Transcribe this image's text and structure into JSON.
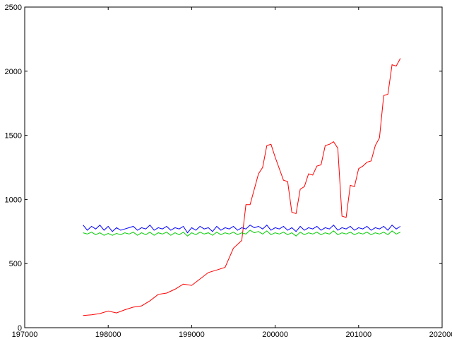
{
  "chart_data": {
    "type": "line",
    "title": "",
    "xlabel": "",
    "ylabel": "",
    "xlim": [
      197000,
      202000
    ],
    "ylim": [
      0,
      2500
    ],
    "grid": false,
    "legend": "none",
    "x_ticks": [
      197000,
      198000,
      199000,
      200000,
      201000,
      202000
    ],
    "x_tick_labels": [
      "197000",
      "198000",
      "199000",
      "200000",
      "201000",
      "202000"
    ],
    "y_ticks": [
      0,
      500,
      1000,
      1500,
      2000,
      2500
    ],
    "y_tick_labels": [
      "0",
      "500",
      "1000",
      "1500",
      "2000",
      "2500"
    ],
    "series": [
      {
        "color": "#ff0000",
        "x": [
          197700,
          197800,
          197900,
          198000,
          198100,
          198200,
          198300,
          198400,
          198500,
          198600,
          198700,
          198800,
          198900,
          199000,
          199100,
          199200,
          199300,
          199400,
          199500,
          199600,
          199650,
          199700,
          199800,
          199850,
          199900,
          199950,
          200000,
          200100,
          200150,
          200200,
          200250,
          200300,
          200350,
          200400,
          200450,
          200500,
          200550,
          200600,
          200650,
          200700,
          200750,
          200800,
          200850,
          200900,
          200950,
          201000,
          201050,
          201100,
          201150,
          201200,
          201250,
          201300,
          201350,
          201400,
          201450,
          201500
        ],
        "y": [
          95,
          100,
          110,
          130,
          115,
          140,
          160,
          170,
          210,
          260,
          270,
          300,
          340,
          330,
          380,
          430,
          450,
          470,
          620,
          680,
          960,
          960,
          1200,
          1250,
          1420,
          1430,
          1330,
          1150,
          1140,
          900,
          890,
          1080,
          1100,
          1200,
          1190,
          1260,
          1270,
          1420,
          1430,
          1450,
          1400,
          870,
          860,
          1110,
          1100,
          1240,
          1260,
          1290,
          1300,
          1420,
          1480,
          1810,
          1820,
          2050,
          2040,
          2100
        ]
      },
      {
        "color": "#0000ff",
        "x": [
          197700,
          197750,
          197800,
          197850,
          197900,
          197950,
          198000,
          198050,
          198100,
          198150,
          198200,
          198250,
          198300,
          198350,
          198400,
          198450,
          198500,
          198550,
          198600,
          198650,
          198700,
          198750,
          198800,
          198850,
          198900,
          198950,
          199000,
          199050,
          199100,
          199150,
          199200,
          199250,
          199300,
          199350,
          199400,
          199450,
          199500,
          199550,
          199600,
          199650,
          199700,
          199750,
          199800,
          199850,
          199900,
          199950,
          200000,
          200050,
          200100,
          200150,
          200200,
          200250,
          200300,
          200350,
          200400,
          200450,
          200500,
          200550,
          200600,
          200650,
          200700,
          200750,
          200800,
          200850,
          200900,
          200950,
          201000,
          201050,
          201100,
          201150,
          201200,
          201250,
          201300,
          201350,
          201400,
          201450,
          201500
        ],
        "y": [
          800,
          760,
          790,
          770,
          800,
          760,
          790,
          750,
          780,
          760,
          770,
          780,
          790,
          760,
          780,
          770,
          800,
          760,
          780,
          770,
          790,
          760,
          780,
          770,
          790,
          740,
          780,
          760,
          790,
          770,
          780,
          750,
          790,
          760,
          780,
          770,
          790,
          760,
          780,
          770,
          800,
          780,
          790,
          770,
          800,
          760,
          780,
          770,
          790,
          760,
          780,
          750,
          790,
          760,
          780,
          770,
          790,
          760,
          780,
          770,
          800,
          760,
          780,
          770,
          790,
          760,
          780,
          770,
          790,
          760,
          780,
          770,
          790,
          760,
          800,
          770,
          790
        ]
      },
      {
        "color": "#00cc00",
        "x": [
          197700,
          197750,
          197800,
          197850,
          197900,
          197950,
          198000,
          198050,
          198100,
          198150,
          198200,
          198250,
          198300,
          198350,
          198400,
          198450,
          198500,
          198550,
          198600,
          198650,
          198700,
          198750,
          198800,
          198850,
          198900,
          198950,
          199000,
          199050,
          199100,
          199150,
          199200,
          199250,
          199300,
          199350,
          199400,
          199450,
          199500,
          199550,
          199600,
          199650,
          199700,
          199750,
          199800,
          199850,
          199900,
          199950,
          200000,
          200050,
          200100,
          200150,
          200200,
          200250,
          200300,
          200350,
          200400,
          200450,
          200500,
          200550,
          200600,
          200650,
          200700,
          200750,
          200800,
          200850,
          200900,
          200950,
          201000,
          201050,
          201100,
          201150,
          201200,
          201250,
          201300,
          201350,
          201400,
          201450,
          201500
        ],
        "y": [
          740,
          730,
          745,
          725,
          740,
          720,
          735,
          720,
          735,
          725,
          740,
          730,
          745,
          720,
          740,
          725,
          745,
          720,
          740,
          730,
          745,
          720,
          740,
          725,
          745,
          715,
          740,
          725,
          745,
          730,
          740,
          720,
          745,
          725,
          740,
          730,
          745,
          725,
          740,
          730,
          760,
          740,
          750,
          730,
          755,
          725,
          740,
          730,
          745,
          725,
          740,
          715,
          745,
          725,
          740,
          730,
          745,
          725,
          740,
          730,
          755,
          725,
          740,
          730,
          745,
          725,
          740,
          730,
          745,
          725,
          740,
          730,
          745,
          725,
          755,
          730,
          745
        ]
      }
    ]
  }
}
